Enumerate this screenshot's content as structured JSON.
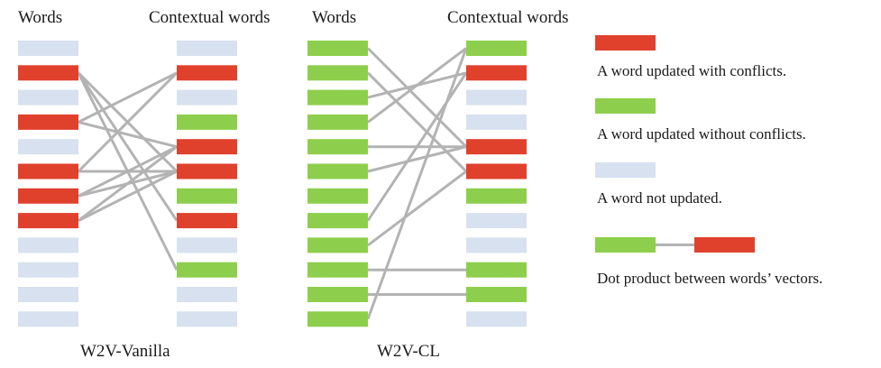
{
  "colors": {
    "conflict": "#e0412d",
    "no_conflict": "#8dcf4c",
    "not_updated": "#d7e1ef",
    "edge": "#b3b3b3"
  },
  "panels": [
    {
      "words_label": "Words",
      "contextual_label": "Contextual words",
      "caption": "W2V-Vanilla",
      "words": [
        "not_updated",
        "conflict",
        "not_updated",
        "conflict",
        "not_updated",
        "conflict",
        "conflict",
        "conflict",
        "not_updated",
        "not_updated",
        "not_updated",
        "not_updated"
      ],
      "contextual": [
        "not_updated",
        "conflict",
        "not_updated",
        "no_conflict",
        "conflict",
        "conflict",
        "no_conflict",
        "conflict",
        "not_updated",
        "no_conflict",
        "not_updated",
        "not_updated"
      ],
      "edges": [
        [
          1,
          5
        ],
        [
          1,
          7
        ],
        [
          1,
          9
        ],
        [
          3,
          1
        ],
        [
          3,
          4
        ],
        [
          5,
          1
        ],
        [
          5,
          5
        ],
        [
          6,
          4
        ],
        [
          6,
          5
        ],
        [
          7,
          4
        ],
        [
          7,
          5
        ]
      ]
    },
    {
      "words_label": "Words",
      "contextual_label": "Contextual words",
      "caption": "W2V-CL",
      "words": [
        "no_conflict",
        "no_conflict",
        "no_conflict",
        "no_conflict",
        "no_conflict",
        "no_conflict",
        "no_conflict",
        "no_conflict",
        "no_conflict",
        "no_conflict",
        "no_conflict",
        "no_conflict"
      ],
      "contextual": [
        "no_conflict",
        "conflict",
        "not_updated",
        "not_updated",
        "conflict",
        "conflict",
        "no_conflict",
        "not_updated",
        "not_updated",
        "no_conflict",
        "no_conflict",
        "not_updated"
      ],
      "edges": [
        [
          0,
          4
        ],
        [
          1,
          5
        ],
        [
          2,
          1
        ],
        [
          3,
          0
        ],
        [
          4,
          4
        ],
        [
          5,
          4
        ],
        [
          7,
          1
        ],
        [
          8,
          5
        ],
        [
          9,
          9
        ],
        [
          10,
          10
        ],
        [
          11,
          0
        ]
      ]
    }
  ],
  "legend": {
    "conflict": "A word updated with conflicts.",
    "no_conflict": "A word updated without conflicts.",
    "not_updated": "A word not updated.",
    "dot_product": "Dot product between words’ vectors."
  }
}
